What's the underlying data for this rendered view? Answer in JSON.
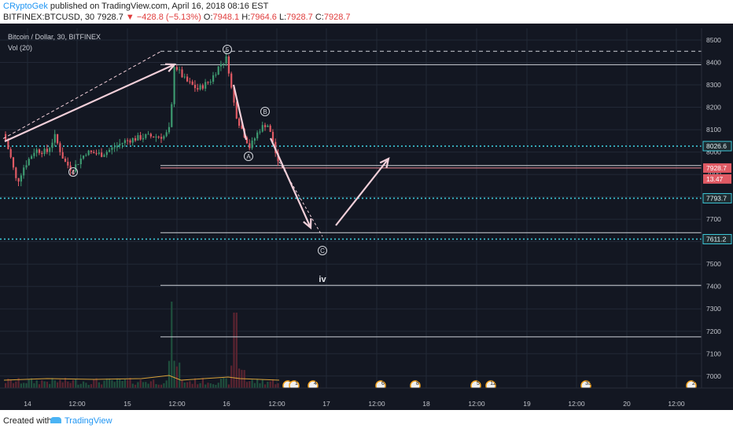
{
  "header": {
    "author": "CRyptoGek",
    "published_text": "published on TradingView.com, April 16, 2018 08:16 EST",
    "symbol_line": "BITFINEX:BTCUSD, 30",
    "last": "7928.7",
    "change": "−428.8 (−5.13%)",
    "open_label": "O:",
    "open": "7948.1",
    "high_label": "H:",
    "high": "7964.6",
    "low_label": "L:",
    "low": "7928.7",
    "close_label": "C:",
    "close": "7928.7"
  },
  "legend": {
    "title": "Bitcoin / Dollar, 30, BITFINEX",
    "indicator": "Vol (20)"
  },
  "footer": {
    "created_with": "Created with",
    "brand": "TradingView"
  },
  "colors": {
    "background": "#131722",
    "up": "#3d9970",
    "down": "#e05a64",
    "cyan_level": "#3cc8d8",
    "annotation": "#f2cfd9",
    "grid": "#222836"
  },
  "chart_data": {
    "type": "candlestick",
    "symbol": "BITFINEX:BTCUSD",
    "interval": "30",
    "y_range": [
      6880,
      8560
    ],
    "y_ticks": [
      8500,
      8400,
      8300,
      8200,
      8100,
      8000,
      7900,
      7800,
      7700,
      7600,
      7500,
      7400,
      7300,
      7200,
      7100,
      7000
    ],
    "x_tick_labels": [
      "14",
      "12:00",
      "15",
      "12:00",
      "16",
      "12:00",
      "17",
      "12:00",
      "18",
      "12:00",
      "19",
      "12:00",
      "20",
      "12:00"
    ],
    "price_labels": [
      {
        "text": "8026.6",
        "price": 8026.6,
        "style": "cyan"
      },
      {
        "text": "7928.7",
        "price": 7928.7,
        "style": "red"
      },
      {
        "text": "13.47",
        "price": 7880,
        "style": "red"
      },
      {
        "text": "7793.7",
        "price": 7793.7,
        "style": "cyan"
      },
      {
        "text": "7611.2",
        "price": 7611.2,
        "style": "cyan"
      }
    ],
    "levels": [
      {
        "price": 8026.6,
        "style": "cyan-dotted"
      },
      {
        "price": 7793.7,
        "style": "cyan-dotted"
      },
      {
        "price": 7611.2,
        "style": "cyan-dotted"
      },
      {
        "price": 7928.7,
        "style": "red-price-line"
      },
      {
        "price": 8390,
        "style": "white"
      },
      {
        "price": 7940,
        "style": "white"
      },
      {
        "price": 7640,
        "style": "white"
      },
      {
        "price": 7405,
        "style": "white"
      },
      {
        "price": 7175,
        "style": "white"
      },
      {
        "price": 8450,
        "style": "white-dashed"
      }
    ],
    "wave_labels": [
      "5",
      "4",
      "A",
      "B",
      "C",
      "iv"
    ],
    "event_badges": [
      "3",
      "1",
      "4",
      "6",
      "8",
      "5",
      "12",
      "33",
      "2"
    ]
  }
}
